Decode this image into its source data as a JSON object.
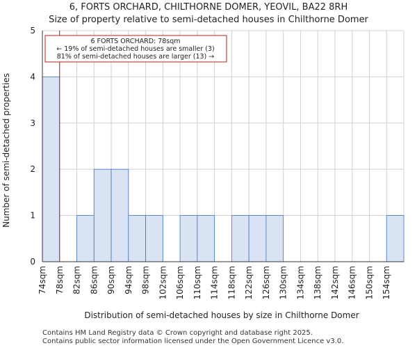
{
  "title": "6, FORTS ORCHARD, CHILTHORNE DOMER, YEOVIL, BA22 8RH",
  "subtitle": "Size of property relative to semi-detached houses in Chilthorne Domer",
  "footer": {
    "line1": "Contains HM Land Registry data © Crown copyright and database right 2025.",
    "line2": "Contains public sector information licensed under the Open Government Licence v3.0."
  },
  "chart_data": {
    "type": "bar",
    "categories": [
      "74sqm",
      "78sqm",
      "82sqm",
      "86sqm",
      "90sqm",
      "94sqm",
      "98sqm",
      "102sqm",
      "106sqm",
      "110sqm",
      "114sqm",
      "118sqm",
      "122sqm",
      "126sqm",
      "130sqm",
      "134sqm",
      "138sqm",
      "142sqm",
      "146sqm",
      "150sqm",
      "154sqm"
    ],
    "values": [
      4,
      0,
      1,
      2,
      2,
      1,
      1,
      0,
      1,
      1,
      0,
      1,
      1,
      1,
      0,
      0,
      0,
      0,
      0,
      0,
      1
    ],
    "xlabel": "Distribution of semi-detached houses by size in Chilthorne Domer",
    "ylabel": "Number of semi-detached properties",
    "ylim": [
      0,
      5
    ],
    "yticks": [
      0,
      1,
      2,
      3,
      4,
      5
    ],
    "marker_value": 78,
    "bin_start": 74,
    "bin_width": 4,
    "annotation": {
      "line1": "6 FORTS ORCHARD: 78sqm",
      "line2": "← 19% of semi-detached houses are smaller (3)",
      "line3": "81% of semi-detached houses are larger (13) →"
    },
    "colors": {
      "bar_fill": "#dae3f3",
      "bar_edge": "#4472c4",
      "marker": "#b22222",
      "grid": "#d0d0d0"
    }
  }
}
